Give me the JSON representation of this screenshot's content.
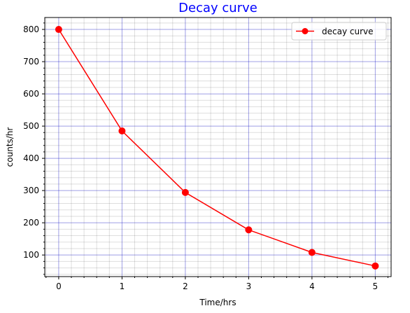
{
  "chart_data": {
    "type": "line",
    "title": "Decay curve",
    "xlabel": "Time/hrs",
    "ylabel": "counts/hr",
    "x": [
      0,
      1,
      2,
      3,
      4,
      5
    ],
    "series": [
      {
        "name": "decay curve",
        "values": [
          800,
          485,
          294,
          178,
          108,
          66
        ],
        "color": "#ff0000",
        "marker": "circle"
      }
    ],
    "xlim": [
      -0.22,
      5.25
    ],
    "ylim": [
      33,
      837
    ],
    "xticks": [
      0,
      1,
      2,
      3,
      4,
      5
    ],
    "yticks": [
      100,
      200,
      300,
      400,
      500,
      600,
      700,
      800
    ],
    "x_minor_step": 0.2,
    "y_minor_step": 20,
    "grid": {
      "major": true,
      "minor": true,
      "major_color": "#0000ff",
      "minor_color": "#000000"
    },
    "title_color": "#0000ff",
    "legend": {
      "position": "top-right"
    }
  }
}
